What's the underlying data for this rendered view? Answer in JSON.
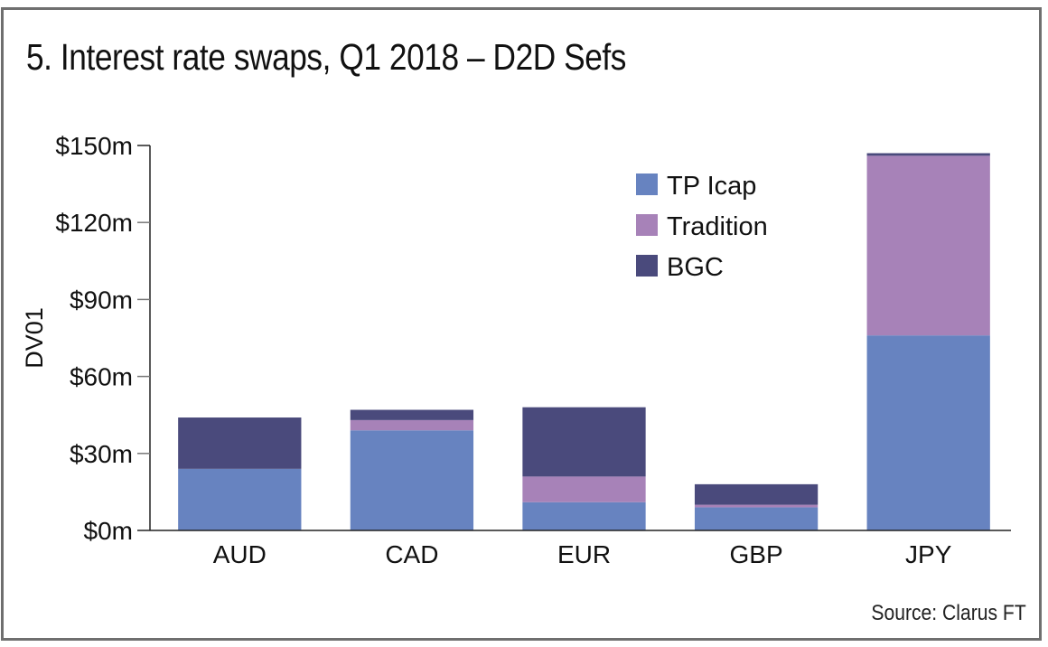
{
  "chart_data": {
    "type": "bar",
    "stacked": true,
    "title": "5. Interest rate swaps, Q1 2018 – D2D Sefs",
    "xlabel": "",
    "ylabel": "DV01",
    "categories": [
      "AUD",
      "CAD",
      "EUR",
      "GBP",
      "JPY"
    ],
    "series": [
      {
        "name": "TP Icap",
        "color": "#6783c0",
        "values": [
          24,
          39,
          11,
          9,
          76
        ]
      },
      {
        "name": "Tradition",
        "color": "#a782b8",
        "values": [
          0,
          4,
          10,
          1,
          70
        ]
      },
      {
        "name": "BGC",
        "color": "#4a4a7c",
        "values": [
          20,
          4,
          27,
          8,
          1
        ]
      }
    ],
    "ylim": [
      0,
      150
    ],
    "yticks": [
      0,
      30,
      60,
      90,
      120,
      150
    ],
    "ytick_labels": [
      "$0m",
      "$30m",
      "$60m",
      "$90m",
      "$120m",
      "$150m"
    ],
    "grid": false,
    "legend_position": "top-right",
    "source": "Source: Clarus FT"
  }
}
